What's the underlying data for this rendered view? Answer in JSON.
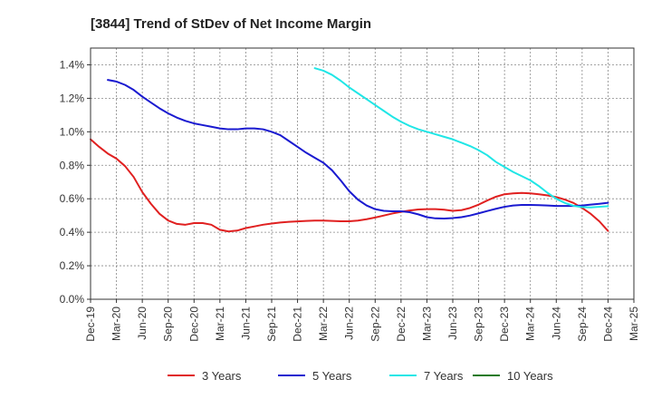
{
  "chart_data": {
    "type": "line",
    "title": "[3844]  Trend of StDev of Net Income Margin",
    "xlabel": "",
    "ylabel": "",
    "x_ticks": [
      "Dec-19",
      "Mar-20",
      "Jun-20",
      "Sep-20",
      "Dec-20",
      "Mar-21",
      "Jun-21",
      "Sep-21",
      "Dec-21",
      "Mar-22",
      "Jun-22",
      "Sep-22",
      "Dec-22",
      "Mar-23",
      "Jun-23",
      "Sep-23",
      "Dec-23",
      "Mar-24",
      "Jun-24",
      "Sep-24",
      "Dec-24",
      "Mar-25"
    ],
    "y_ticks": [
      "0.0%",
      "0.2%",
      "0.4%",
      "0.6%",
      "0.8%",
      "1.0%",
      "1.2%",
      "1.4%"
    ],
    "ylim": [
      0,
      1.5
    ],
    "grid": true,
    "legend_position": "bottom",
    "series": [
      {
        "name": "3 Years",
        "color": "#e02020",
        "points": [
          [
            "Dec-19",
            0.955
          ],
          [
            "Jan-20",
            0.91
          ],
          [
            "Feb-20",
            0.87
          ],
          [
            "Mar-20",
            0.84
          ],
          [
            "Apr-20",
            0.795
          ],
          [
            "May-20",
            0.73
          ],
          [
            "Jun-20",
            0.64
          ],
          [
            "Jul-20",
            0.57
          ],
          [
            "Aug-20",
            0.51
          ],
          [
            "Sep-20",
            0.47
          ],
          [
            "Oct-20",
            0.45
          ],
          [
            "Nov-20",
            0.445
          ],
          [
            "Dec-20",
            0.455
          ],
          [
            "Jan-21",
            0.455
          ],
          [
            "Feb-21",
            0.445
          ],
          [
            "Mar-21",
            0.415
          ],
          [
            "Apr-21",
            0.405
          ],
          [
            "May-21",
            0.41
          ],
          [
            "Jun-21",
            0.425
          ],
          [
            "Jul-21",
            0.435
          ],
          [
            "Aug-21",
            0.445
          ],
          [
            "Sep-21",
            0.452
          ],
          [
            "Oct-21",
            0.458
          ],
          [
            "Nov-21",
            0.462
          ],
          [
            "Dec-21",
            0.465
          ],
          [
            "Jan-22",
            0.468
          ],
          [
            "Feb-22",
            0.47
          ],
          [
            "Mar-22",
            0.47
          ],
          [
            "Apr-22",
            0.468
          ],
          [
            "May-22",
            0.466
          ],
          [
            "Jun-22",
            0.466
          ],
          [
            "Jul-22",
            0.47
          ],
          [
            "Aug-22",
            0.478
          ],
          [
            "Sep-22",
            0.488
          ],
          [
            "Oct-22",
            0.5
          ],
          [
            "Nov-22",
            0.512
          ],
          [
            "Dec-22",
            0.522
          ],
          [
            "Jan-23",
            0.53
          ],
          [
            "Feb-23",
            0.536
          ],
          [
            "Mar-23",
            0.538
          ],
          [
            "Apr-23",
            0.538
          ],
          [
            "May-23",
            0.535
          ],
          [
            "Jun-23",
            0.528
          ],
          [
            "Jul-23",
            0.532
          ],
          [
            "Aug-23",
            0.545
          ],
          [
            "Sep-23",
            0.565
          ],
          [
            "Oct-23",
            0.59
          ],
          [
            "Nov-23",
            0.612
          ],
          [
            "Dec-23",
            0.627
          ],
          [
            "Jan-24",
            0.632
          ],
          [
            "Feb-24",
            0.635
          ],
          [
            "Mar-24",
            0.632
          ],
          [
            "Apr-24",
            0.627
          ],
          [
            "May-24",
            0.62
          ],
          [
            "Jun-24",
            0.61
          ],
          [
            "Jul-24",
            0.595
          ],
          [
            "Aug-24",
            0.575
          ],
          [
            "Sep-24",
            0.545
          ],
          [
            "Oct-24",
            0.51
          ],
          [
            "Nov-24",
            0.465
          ],
          [
            "Dec-24",
            0.408
          ]
        ]
      },
      {
        "name": "5 Years",
        "color": "#1a1ad0",
        "points": [
          [
            "Feb-20",
            1.31
          ],
          [
            "Mar-20",
            1.3
          ],
          [
            "Apr-20",
            1.28
          ],
          [
            "May-20",
            1.25
          ],
          [
            "Jun-20",
            1.21
          ],
          [
            "Jul-20",
            1.175
          ],
          [
            "Aug-20",
            1.14
          ],
          [
            "Sep-20",
            1.11
          ],
          [
            "Oct-20",
            1.085
          ],
          [
            "Nov-20",
            1.065
          ],
          [
            "Dec-20",
            1.05
          ],
          [
            "Jan-21",
            1.04
          ],
          [
            "Feb-21",
            1.03
          ],
          [
            "Mar-21",
            1.02
          ],
          [
            "Apr-21",
            1.015
          ],
          [
            "May-21",
            1.015
          ],
          [
            "Jun-21",
            1.02
          ],
          [
            "Jul-21",
            1.02
          ],
          [
            "Aug-21",
            1.015
          ],
          [
            "Sep-21",
            1.0
          ],
          [
            "Oct-21",
            0.98
          ],
          [
            "Nov-21",
            0.945
          ],
          [
            "Dec-21",
            0.91
          ],
          [
            "Jan-22",
            0.875
          ],
          [
            "Feb-22",
            0.845
          ],
          [
            "Mar-22",
            0.815
          ],
          [
            "Apr-22",
            0.77
          ],
          [
            "May-22",
            0.71
          ],
          [
            "Jun-22",
            0.645
          ],
          [
            "Jul-22",
            0.595
          ],
          [
            "Aug-22",
            0.56
          ],
          [
            "Sep-22",
            0.538
          ],
          [
            "Oct-22",
            0.528
          ],
          [
            "Nov-22",
            0.525
          ],
          [
            "Dec-22",
            0.525
          ],
          [
            "Jan-23",
            0.52
          ],
          [
            "Feb-23",
            0.507
          ],
          [
            "Mar-23",
            0.49
          ],
          [
            "Apr-23",
            0.483
          ],
          [
            "May-23",
            0.482
          ],
          [
            "Jun-23",
            0.485
          ],
          [
            "Jul-23",
            0.49
          ],
          [
            "Aug-23",
            0.5
          ],
          [
            "Sep-23",
            0.513
          ],
          [
            "Oct-23",
            0.527
          ],
          [
            "Nov-23",
            0.54
          ],
          [
            "Dec-23",
            0.552
          ],
          [
            "Jan-24",
            0.56
          ],
          [
            "Feb-24",
            0.563
          ],
          [
            "Mar-24",
            0.563
          ],
          [
            "Apr-24",
            0.562
          ],
          [
            "May-24",
            0.56
          ],
          [
            "Jun-24",
            0.557
          ],
          [
            "Jul-24",
            0.557
          ],
          [
            "Aug-24",
            0.557
          ],
          [
            "Sep-24",
            0.56
          ],
          [
            "Oct-24",
            0.565
          ],
          [
            "Nov-24",
            0.57
          ],
          [
            "Dec-24",
            0.576
          ]
        ]
      },
      {
        "name": "7 Years",
        "color": "#20e6e6",
        "points": [
          [
            "Feb-22",
            1.38
          ],
          [
            "Mar-22",
            1.365
          ],
          [
            "Apr-22",
            1.34
          ],
          [
            "May-22",
            1.305
          ],
          [
            "Jun-22",
            1.265
          ],
          [
            "Jul-22",
            1.23
          ],
          [
            "Aug-22",
            1.195
          ],
          [
            "Sep-22",
            1.16
          ],
          [
            "Oct-22",
            1.125
          ],
          [
            "Nov-22",
            1.09
          ],
          [
            "Dec-22",
            1.06
          ],
          [
            "Jan-23",
            1.035
          ],
          [
            "Feb-23",
            1.015
          ],
          [
            "Mar-23",
            1.0
          ],
          [
            "Apr-23",
            0.985
          ],
          [
            "May-23",
            0.97
          ],
          [
            "Jun-23",
            0.955
          ],
          [
            "Jul-23",
            0.935
          ],
          [
            "Aug-23",
            0.915
          ],
          [
            "Sep-23",
            0.89
          ],
          [
            "Oct-23",
            0.86
          ],
          [
            "Nov-23",
            0.82
          ],
          [
            "Dec-23",
            0.79
          ],
          [
            "Jan-24",
            0.76
          ],
          [
            "Feb-24",
            0.735
          ],
          [
            "Mar-24",
            0.71
          ],
          [
            "Apr-24",
            0.675
          ],
          [
            "May-24",
            0.635
          ],
          [
            "Jun-24",
            0.6
          ],
          [
            "Jul-24",
            0.575
          ],
          [
            "Aug-24",
            0.558
          ],
          [
            "Sep-24",
            0.55
          ],
          [
            "Oct-24",
            0.548
          ],
          [
            "Nov-24",
            0.552
          ],
          [
            "Dec-24",
            0.556
          ]
        ]
      },
      {
        "name": "10 Years",
        "color": "#1f7a1f",
        "points": []
      }
    ]
  }
}
